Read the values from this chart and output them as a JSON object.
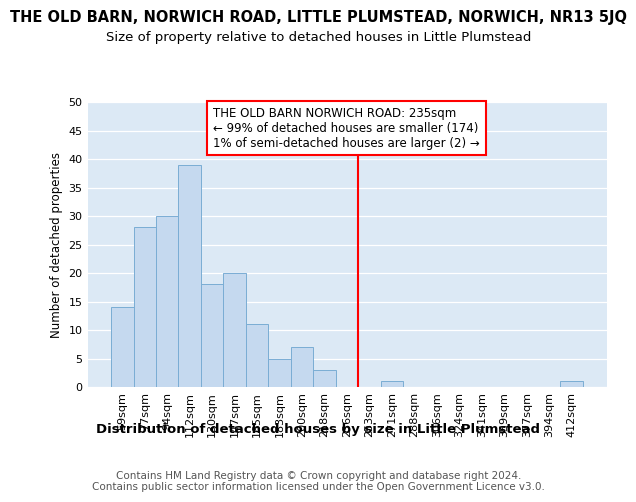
{
  "title": "THE OLD BARN, NORWICH ROAD, LITTLE PLUMSTEAD, NORWICH, NR13 5JQ",
  "subtitle": "Size of property relative to detached houses in Little Plumstead",
  "xlabel": "Distribution of detached houses by size in Little Plumstead",
  "ylabel": "Number of detached properties",
  "footer": "Contains HM Land Registry data © Crown copyright and database right 2024.\nContains public sector information licensed under the Open Government Licence v3.0.",
  "categories": [
    "59sqm",
    "77sqm",
    "94sqm",
    "112sqm",
    "130sqm",
    "147sqm",
    "165sqm",
    "183sqm",
    "200sqm",
    "218sqm",
    "236sqm",
    "253sqm",
    "271sqm",
    "288sqm",
    "306sqm",
    "324sqm",
    "341sqm",
    "359sqm",
    "377sqm",
    "394sqm",
    "412sqm"
  ],
  "values": [
    14,
    28,
    30,
    39,
    18,
    20,
    11,
    5,
    7,
    3,
    0,
    0,
    1,
    0,
    0,
    0,
    0,
    0,
    0,
    0,
    1
  ],
  "bar_color": "#c5d9ef",
  "bar_edge_color": "#7aadd4",
  "background_color": "#dce9f5",
  "ylim": [
    0,
    50
  ],
  "red_line_x": 10.5,
  "annotation_text": "THE OLD BARN NORWICH ROAD: 235sqm\n← 99% of detached houses are smaller (174)\n1% of semi-detached houses are larger (2) →",
  "title_fontsize": 10.5,
  "subtitle_fontsize": 9.5,
  "xlabel_fontsize": 9.5,
  "ylabel_fontsize": 8.5,
  "tick_fontsize": 8,
  "footer_fontsize": 7.5,
  "ann_fontsize": 8.5
}
